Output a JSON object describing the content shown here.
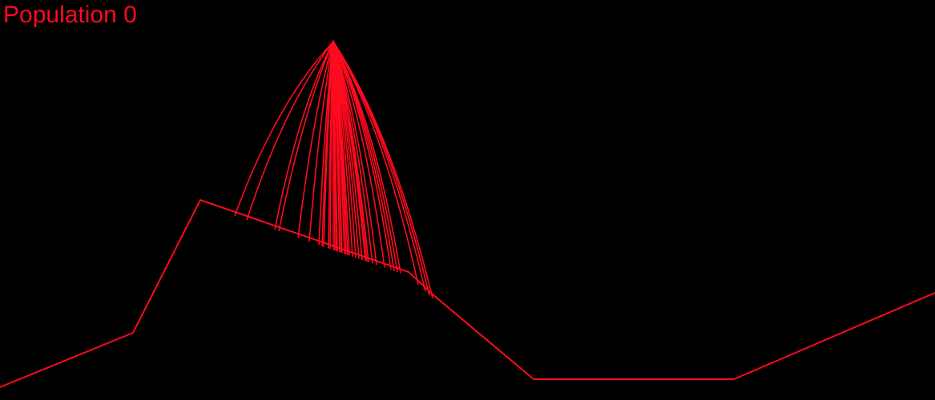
{
  "hud": {
    "population_label": "Population 0"
  },
  "colors": {
    "background": "#000000",
    "accent": "#ff0a1e"
  },
  "scene": {
    "terrain_name": "terrain-line",
    "trajectories_name": "projectile-trajectories",
    "trajectory_count": 40
  }
}
